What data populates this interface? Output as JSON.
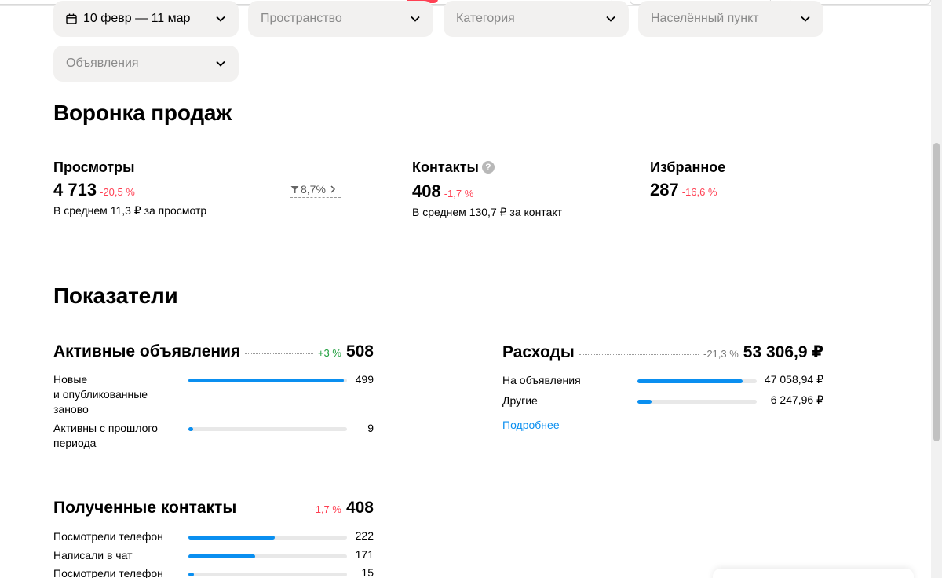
{
  "filters": {
    "date": "10 февр — 11 мар",
    "space": "Пространство",
    "category": "Категория",
    "locality": "Населённый пункт",
    "ads": "Объявления"
  },
  "funnel": {
    "title": "Воронка продаж",
    "views": {
      "title": "Просмотры",
      "value": "4 713",
      "delta": "-20,5 %",
      "sub": "В среднем 11,3 ₽ за просмотр"
    },
    "conversion": "8,7%",
    "contacts": {
      "title": "Контакты",
      "help": "?",
      "value": "408",
      "delta": "-1,7 %",
      "sub": "В среднем 130,7 ₽ за контакт"
    },
    "favorites": {
      "title": "Избранное",
      "value": "287",
      "delta": "-16,6 %"
    }
  },
  "indicators": {
    "title": "Показатели",
    "active": {
      "title": "Активные объявления",
      "delta": "+3 %",
      "total": "508",
      "rows": [
        {
          "label": "Новые\nи опубликованные\nзаново",
          "value": "499",
          "fraction": 0.982
        },
        {
          "label": "Активны с прошлого\nпериода",
          "value": "9",
          "fraction": 0.02
        }
      ]
    },
    "expenses": {
      "title": "Расходы",
      "delta": "-21,3 %",
      "total": "53 306,9 ₽",
      "rows": [
        {
          "label": "На объявления",
          "value": "47 058,94 ₽",
          "fraction": 0.88
        },
        {
          "label": "Другие",
          "value": "6 247,96 ₽",
          "fraction": 0.12
        }
      ],
      "more": "Подробнее"
    },
    "contacts": {
      "title": "Полученные контакты",
      "delta": "-1,7 %",
      "total": "408",
      "rows": [
        {
          "label": "Посмотрели телефон",
          "value": "222",
          "fraction": 0.544
        },
        {
          "label": "Написали в чат",
          "value": "171",
          "fraction": 0.419
        },
        {
          "label": "Посмотрели телефон",
          "value": "15",
          "fraction": 0.037
        }
      ]
    }
  },
  "colors": {
    "accent": "#0a8ff0",
    "negative": "#ff4053",
    "positive": "#1e9e3c",
    "filter_bg": "#f2f1f0"
  }
}
